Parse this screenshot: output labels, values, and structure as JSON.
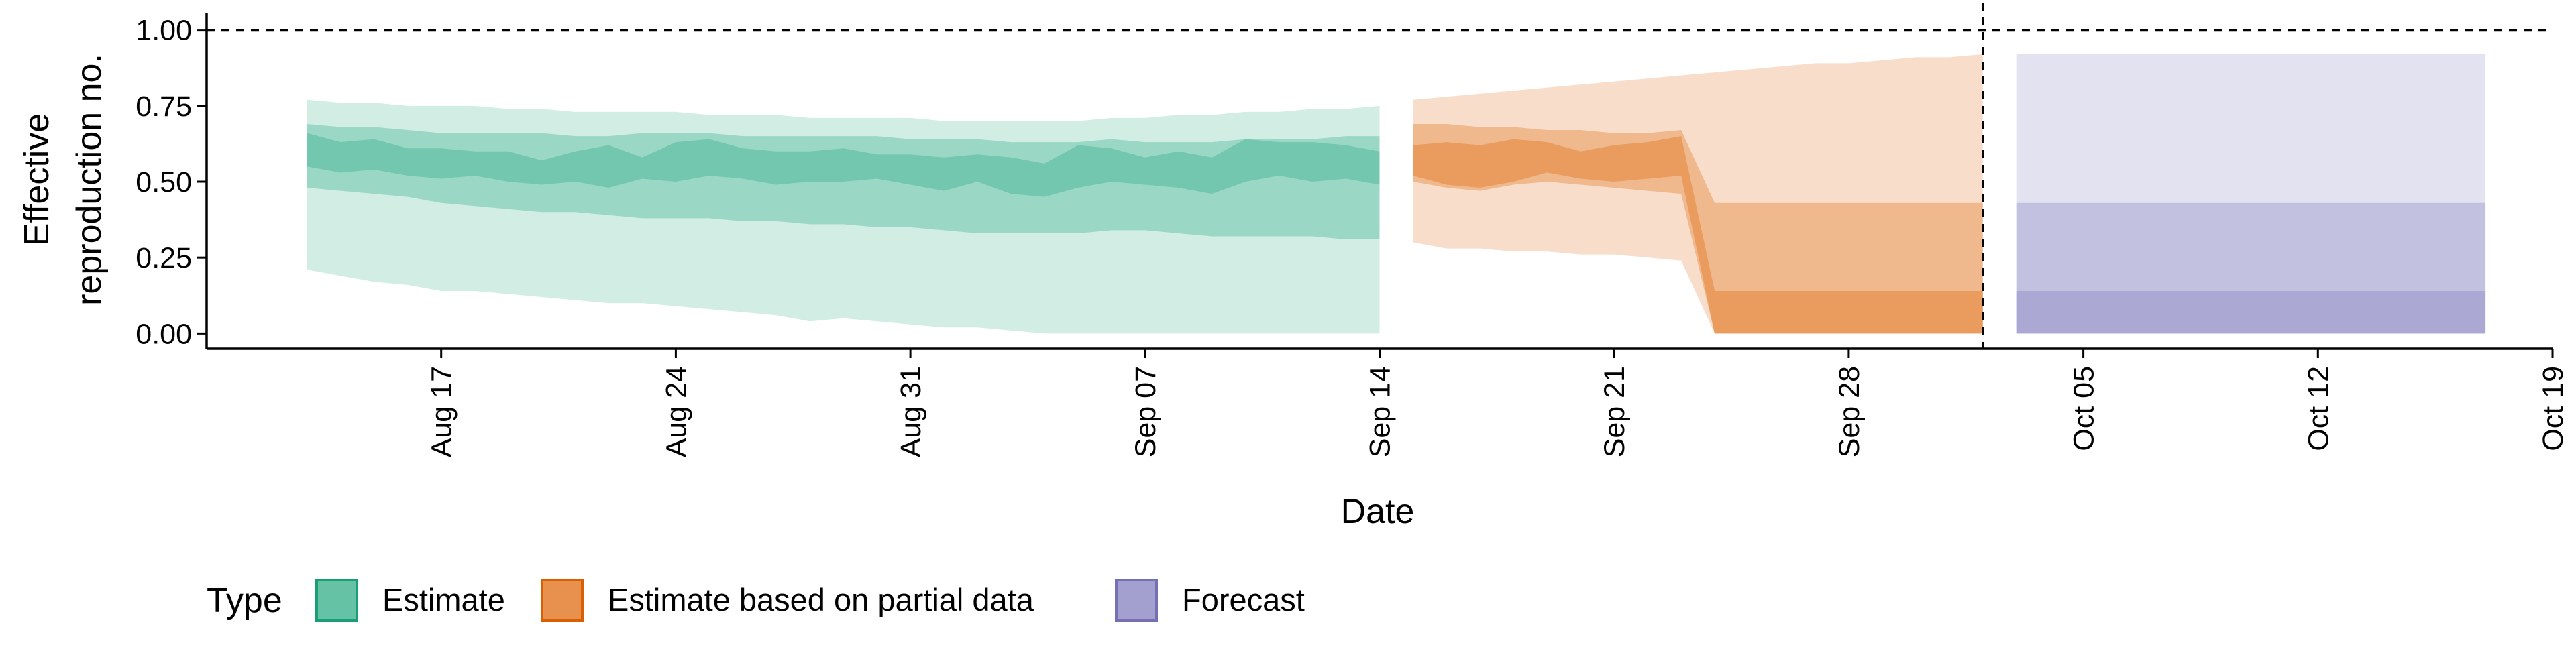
{
  "chart_data": {
    "type": "area",
    "xlabel": "Date",
    "ylabel_lines": [
      "Effective",
      "reproduction no."
    ],
    "ylim": [
      -0.05,
      1.05
    ],
    "y_ticks": [
      {
        "value": 0.0,
        "label": "0.00"
      },
      {
        "value": 0.25,
        "label": "0.25"
      },
      {
        "value": 0.5,
        "label": "0.50"
      },
      {
        "value": 0.75,
        "label": "0.75"
      },
      {
        "value": 1.0,
        "label": "1.00"
      }
    ],
    "x_range": [
      "2020-08-10",
      "2020-10-19"
    ],
    "x_ticks": [
      {
        "date": "2020-08-17",
        "label": "Aug 17"
      },
      {
        "date": "2020-08-24",
        "label": "Aug 24"
      },
      {
        "date": "2020-08-31",
        "label": "Aug 31"
      },
      {
        "date": "2020-09-07",
        "label": "Sep 07"
      },
      {
        "date": "2020-09-14",
        "label": "Sep 14"
      },
      {
        "date": "2020-09-21",
        "label": "Sep 21"
      },
      {
        "date": "2020-09-28",
        "label": "Sep 28"
      },
      {
        "date": "2020-10-05",
        "label": "Oct 05"
      },
      {
        "date": "2020-10-12",
        "label": "Oct 12"
      },
      {
        "date": "2020-10-19",
        "label": "Oct 19"
      }
    ],
    "reference_lines": {
      "horizontal_y": 1.0,
      "vertical_date": "2020-10-02",
      "style": "dashed"
    },
    "grid": false,
    "legend": {
      "title": "Type",
      "position": "bottom-left",
      "entries": [
        {
          "label": "Estimate",
          "fill": "#66c2a5",
          "stroke": "#1b9e77"
        },
        {
          "label": "Estimate based on partial data",
          "fill": "#e8914f",
          "stroke": "#d95f02"
        },
        {
          "label": "Forecast",
          "fill": "#a39fcf",
          "stroke": "#7570b3"
        }
      ]
    },
    "series": [
      {
        "name": "Estimate",
        "color": "#66c2a5",
        "dates": [
          "2020-08-13",
          "2020-08-14",
          "2020-08-15",
          "2020-08-16",
          "2020-08-17",
          "2020-08-18",
          "2020-08-19",
          "2020-08-20",
          "2020-08-21",
          "2020-08-22",
          "2020-08-23",
          "2020-08-24",
          "2020-08-25",
          "2020-08-26",
          "2020-08-27",
          "2020-08-28",
          "2020-08-29",
          "2020-08-30",
          "2020-08-31",
          "2020-09-01",
          "2020-09-02",
          "2020-09-03",
          "2020-09-04",
          "2020-09-05",
          "2020-09-06",
          "2020-09-07",
          "2020-09-08",
          "2020-09-09",
          "2020-09-10",
          "2020-09-11",
          "2020-09-12",
          "2020-09-13",
          "2020-09-14"
        ],
        "bands": [
          {
            "level": "90%",
            "opacity": 0.3,
            "lower": [
              0.21,
              0.19,
              0.17,
              0.16,
              0.14,
              0.14,
              0.13,
              0.12,
              0.11,
              0.1,
              0.1,
              0.09,
              0.08,
              0.07,
              0.06,
              0.04,
              0.05,
              0.04,
              0.03,
              0.02,
              0.02,
              0.01,
              0.0,
              0.0,
              0.0,
              0.0,
              0.0,
              0.0,
              0.0,
              0.0,
              0.0,
              0.0,
              0.0
            ],
            "upper": [
              0.77,
              0.76,
              0.76,
              0.75,
              0.75,
              0.75,
              0.74,
              0.74,
              0.73,
              0.73,
              0.73,
              0.73,
              0.72,
              0.72,
              0.72,
              0.71,
              0.71,
              0.71,
              0.71,
              0.7,
              0.7,
              0.7,
              0.7,
              0.7,
              0.71,
              0.71,
              0.72,
              0.72,
              0.73,
              0.73,
              0.74,
              0.74,
              0.75
            ]
          },
          {
            "level": "50%",
            "opacity": 0.5,
            "lower": [
              0.48,
              0.47,
              0.46,
              0.45,
              0.43,
              0.42,
              0.41,
              0.4,
              0.4,
              0.39,
              0.38,
              0.38,
              0.38,
              0.37,
              0.37,
              0.36,
              0.36,
              0.35,
              0.35,
              0.34,
              0.33,
              0.33,
              0.33,
              0.33,
              0.34,
              0.34,
              0.33,
              0.32,
              0.32,
              0.32,
              0.32,
              0.31,
              0.31
            ]
          },
          {
            "level": "20%",
            "opacity": 0.75,
            "lower": [
              0.55,
              0.53,
              0.54,
              0.52,
              0.51,
              0.52,
              0.5,
              0.49,
              0.5,
              0.48,
              0.51,
              0.5,
              0.52,
              0.51,
              0.49,
              0.5,
              0.5,
              0.51,
              0.49,
              0.47,
              0.5,
              0.46,
              0.45,
              0.48,
              0.5,
              0.49,
              0.48,
              0.46,
              0.5,
              0.52,
              0.5,
              0.51,
              0.49
            ]
          }
        ],
        "upper_50": [
          0.69,
          0.68,
          0.68,
          0.67,
          0.66,
          0.66,
          0.66,
          0.66,
          0.65,
          0.65,
          0.66,
          0.66,
          0.66,
          0.65,
          0.65,
          0.65,
          0.65,
          0.65,
          0.64,
          0.64,
          0.64,
          0.63,
          0.63,
          0.63,
          0.64,
          0.63,
          0.63,
          0.63,
          0.64,
          0.64,
          0.64,
          0.65,
          0.65
        ],
        "upper_20": [
          0.66,
          0.63,
          0.64,
          0.61,
          0.61,
          0.6,
          0.6,
          0.57,
          0.6,
          0.62,
          0.58,
          0.63,
          0.64,
          0.61,
          0.6,
          0.6,
          0.61,
          0.59,
          0.59,
          0.58,
          0.59,
          0.58,
          0.56,
          0.62,
          0.61,
          0.58,
          0.6,
          0.58,
          0.64,
          0.63,
          0.63,
          0.62,
          0.6
        ]
      },
      {
        "name": "Estimate based on partial data",
        "color": "#e8914f",
        "dates": [
          "2020-09-15",
          "2020-09-16",
          "2020-09-17",
          "2020-09-18",
          "2020-09-19",
          "2020-09-20",
          "2020-09-21",
          "2020-09-22",
          "2020-09-23",
          "2020-09-24",
          "2020-09-25",
          "2020-09-26",
          "2020-09-27",
          "2020-09-28",
          "2020-09-29",
          "2020-09-30",
          "2020-10-01",
          "2020-10-02"
        ],
        "bands": [
          {
            "level": "90%",
            "opacity": 0.3,
            "lower": [
              0.3,
              0.28,
              0.28,
              0.27,
              0.27,
              0.26,
              0.26,
              0.25,
              0.24,
              0.0,
              0.0,
              0.0,
              0.0,
              0.0,
              0.0,
              0.0,
              0.0,
              0.0
            ],
            "upper": [
              0.77,
              0.78,
              0.79,
              0.8,
              0.81,
              0.82,
              0.83,
              0.84,
              0.85,
              0.86,
              0.87,
              0.88,
              0.89,
              0.89,
              0.9,
              0.91,
              0.91,
              0.92
            ]
          },
          {
            "level": "50%",
            "opacity": 0.5,
            "lower": [
              0.5,
              0.48,
              0.47,
              0.49,
              0.5,
              0.49,
              0.48,
              0.47,
              0.46,
              0.0,
              0.0,
              0.0,
              0.0,
              0.0,
              0.0,
              0.0,
              0.0,
              0.0
            ]
          },
          {
            "level": "20%",
            "opacity": 0.75,
            "lower": [
              0.52,
              0.49,
              0.48,
              0.5,
              0.53,
              0.51,
              0.5,
              0.51,
              0.52,
              0.0,
              0.0,
              0.0,
              0.0,
              0.0,
              0.0,
              0.0,
              0.0,
              0.0
            ]
          }
        ],
        "upper_50": [
          0.69,
          0.69,
          0.68,
          0.68,
          0.67,
          0.67,
          0.66,
          0.66,
          0.67,
          0.43,
          0.43,
          0.43,
          0.43,
          0.43,
          0.43,
          0.43,
          0.43,
          0.43
        ],
        "upper_20": [
          0.62,
          0.63,
          0.62,
          0.64,
          0.63,
          0.6,
          0.62,
          0.63,
          0.65,
          0.14,
          0.14,
          0.14,
          0.14,
          0.14,
          0.14,
          0.14,
          0.14,
          0.14
        ]
      },
      {
        "name": "Forecast",
        "color": "#a39fcf",
        "dates": [
          "2020-10-03",
          "2020-10-17"
        ],
        "bands": [
          {
            "level": "90%",
            "opacity": 0.3,
            "lower": [
              0.0,
              0.0
            ],
            "upper": [
              0.92,
              0.92
            ]
          },
          {
            "level": "50%",
            "opacity": 0.5,
            "lower": [
              0.0,
              0.0
            ]
          },
          {
            "level": "20%",
            "opacity": 0.75,
            "lower": [
              0.0,
              0.0
            ]
          }
        ],
        "upper_50": [
          0.43,
          0.43
        ],
        "upper_20": [
          0.14,
          0.14
        ]
      }
    ]
  }
}
